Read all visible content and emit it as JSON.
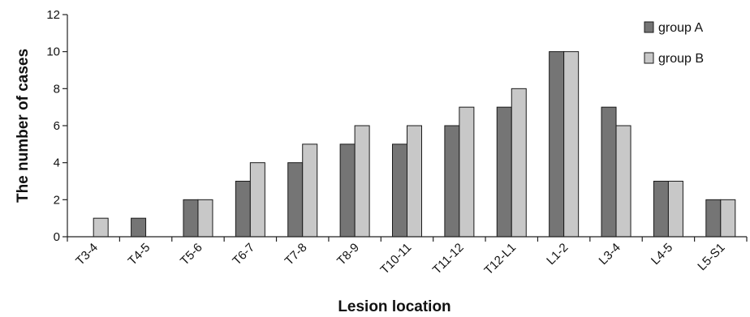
{
  "chart_data": {
    "type": "bar",
    "title": "",
    "xlabel": "Lesion location",
    "ylabel": "The number of cases",
    "ylim": [
      0,
      12
    ],
    "yticks": [
      0,
      2,
      4,
      6,
      8,
      10,
      12
    ],
    "grid": false,
    "legend_position": "top-right",
    "categories": [
      "T3-4",
      "T4-5",
      "T5-6",
      "T6-7",
      "T7-8",
      "T8-9",
      "T10-11",
      "T11-12",
      "T12-L1",
      "L1-2",
      "L3-4",
      "L4-5",
      "L5-S1"
    ],
    "series": [
      {
        "name": "group A",
        "color": "#757575",
        "values": [
          0,
          1,
          2,
          3,
          4,
          5,
          5,
          6,
          7,
          10,
          7,
          3,
          2
        ]
      },
      {
        "name": "group B",
        "color": "#c8c8c8",
        "values": [
          1,
          0,
          2,
          4,
          5,
          6,
          6,
          7,
          8,
          10,
          6,
          3,
          2
        ]
      }
    ]
  }
}
